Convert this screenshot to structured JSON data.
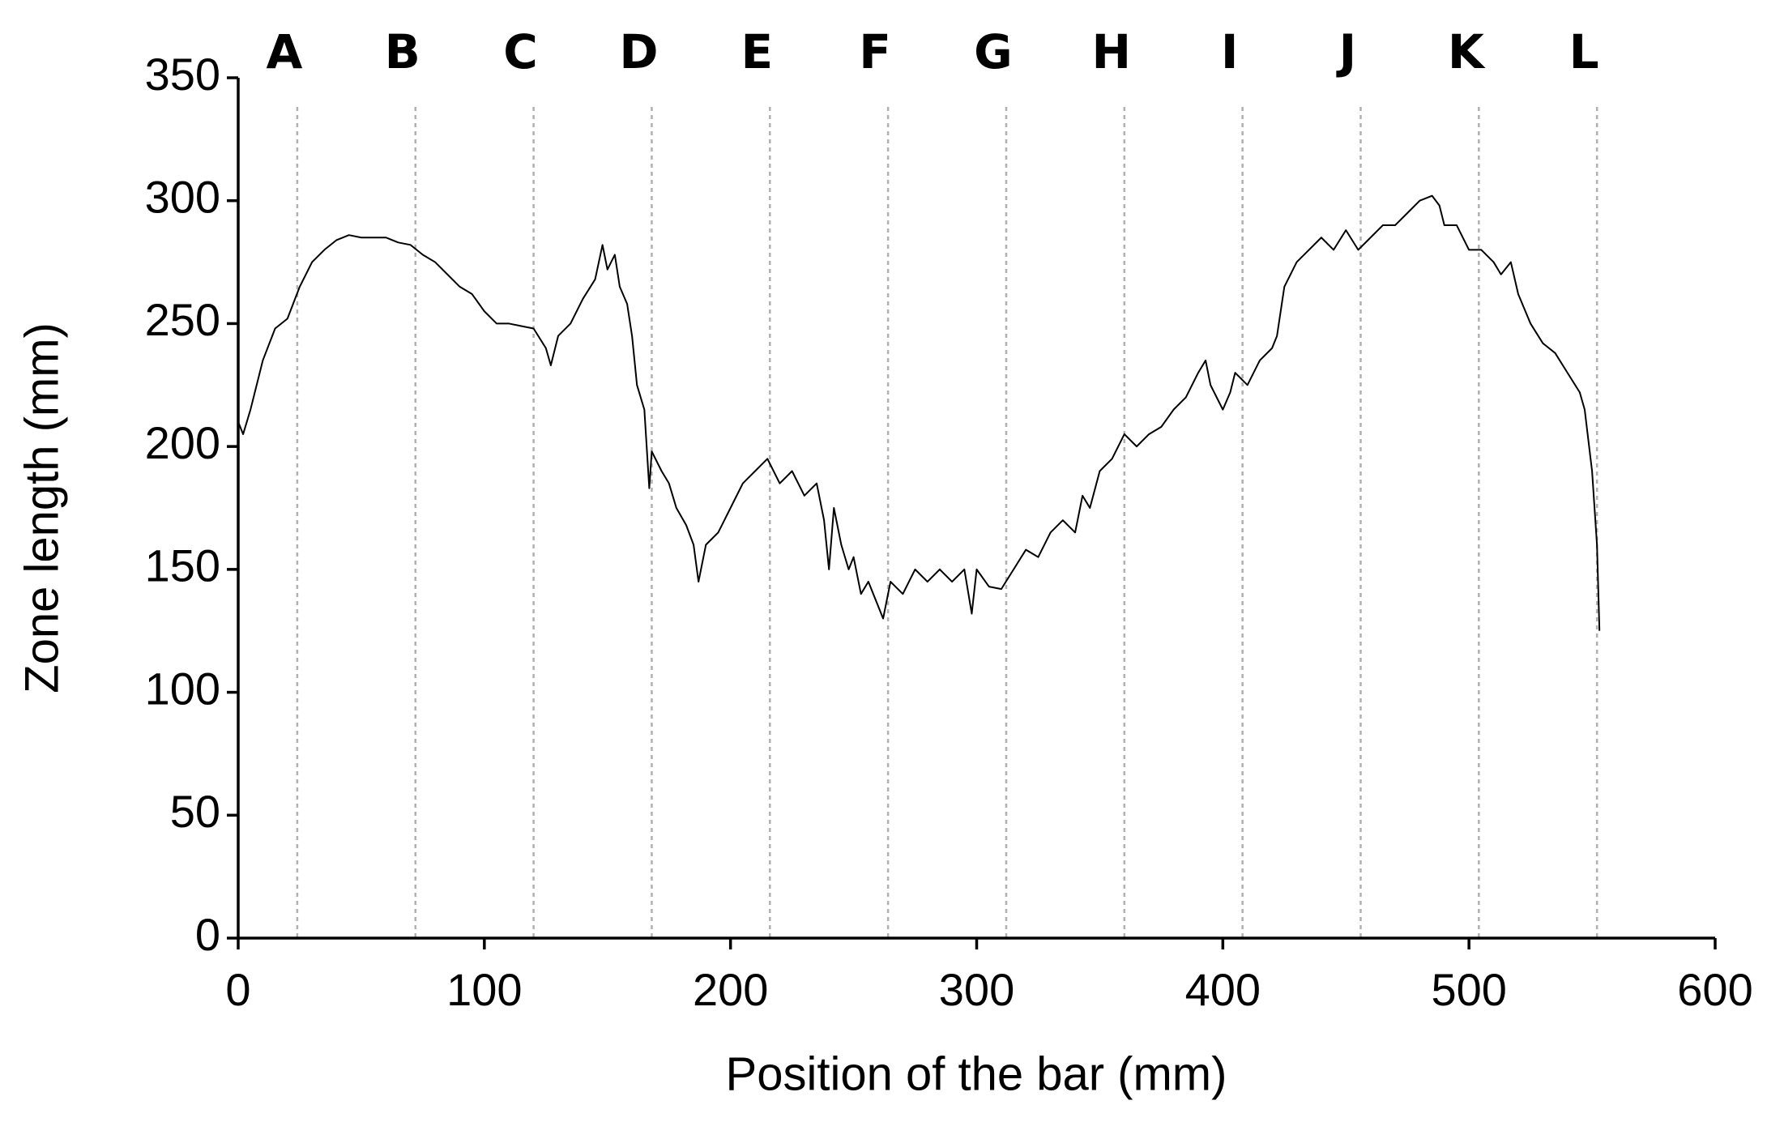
{
  "chart_data": {
    "type": "line",
    "x_label": "Position of the bar (mm)",
    "y_label": "Zone length (mm)",
    "xlim": [
      0,
      600
    ],
    "xticks": [
      0,
      100,
      200,
      300,
      400,
      500,
      600
    ],
    "ylim": [
      0,
      350
    ],
    "yticks": [
      0,
      50,
      100,
      150,
      200,
      250,
      300,
      350
    ],
    "color": "#000000",
    "markers": [
      {
        "label": "A",
        "x": 24
      },
      {
        "label": "B",
        "x": 72
      },
      {
        "label": "C",
        "x": 120
      },
      {
        "label": "D",
        "x": 168
      },
      {
        "label": "E",
        "x": 216
      },
      {
        "label": "F",
        "x": 264
      },
      {
        "label": "G",
        "x": 312
      },
      {
        "label": "H",
        "x": 360
      },
      {
        "label": "I",
        "x": 408
      },
      {
        "label": "J",
        "x": 456
      },
      {
        "label": "K",
        "x": 504
      },
      {
        "label": "L",
        "x": 552
      }
    ],
    "x": [
      0,
      2,
      5,
      10,
      15,
      20,
      25,
      30,
      35,
      40,
      45,
      50,
      55,
      60,
      65,
      70,
      75,
      80,
      85,
      90,
      95,
      100,
      105,
      110,
      115,
      120,
      125,
      127,
      130,
      135,
      140,
      145,
      148,
      150,
      153,
      155,
      158,
      160,
      162,
      165,
      167,
      168,
      172,
      175,
      178,
      182,
      185,
      187,
      190,
      195,
      200,
      205,
      210,
      215,
      220,
      225,
      230,
      235,
      238,
      240,
      242,
      245,
      248,
      250,
      253,
      256,
      260,
      262,
      265,
      270,
      275,
      280,
      285,
      290,
      295,
      298,
      300,
      305,
      310,
      315,
      320,
      325,
      330,
      335,
      340,
      343,
      346,
      350,
      355,
      360,
      365,
      370,
      375,
      380,
      385,
      390,
      393,
      395,
      400,
      403,
      405,
      410,
      415,
      420,
      422,
      425,
      430,
      435,
      440,
      445,
      450,
      455,
      460,
      465,
      470,
      475,
      480,
      485,
      488,
      490,
      495,
      500,
      505,
      510,
      513,
      517,
      520,
      525,
      530,
      535,
      540,
      545,
      547,
      550,
      552,
      553
    ],
    "values": [
      210,
      205,
      215,
      235,
      248,
      252,
      265,
      275,
      280,
      284,
      286,
      285,
      285,
      285,
      283,
      282,
      278,
      275,
      270,
      265,
      262,
      255,
      250,
      250,
      249,
      248,
      240,
      233,
      245,
      250,
      260,
      268,
      282,
      272,
      278,
      265,
      258,
      245,
      225,
      215,
      183,
      198,
      190,
      185,
      175,
      168,
      160,
      145,
      160,
      165,
      175,
      185,
      190,
      195,
      185,
      190,
      180,
      185,
      170,
      150,
      175,
      160,
      150,
      155,
      140,
      145,
      135,
      130,
      145,
      140,
      150,
      145,
      150,
      145,
      150,
      132,
      150,
      143,
      142,
      150,
      158,
      155,
      165,
      170,
      165,
      180,
      175,
      190,
      195,
      205,
      200,
      205,
      208,
      215,
      220,
      230,
      235,
      225,
      215,
      222,
      230,
      225,
      235,
      240,
      245,
      265,
      275,
      280,
      285,
      280,
      288,
      280,
      285,
      290,
      290,
      295,
      300,
      302,
      298,
      290,
      290,
      280,
      280,
      275,
      270,
      275,
      262,
      250,
      242,
      238,
      230,
      222,
      215,
      190,
      160,
      125
    ]
  }
}
